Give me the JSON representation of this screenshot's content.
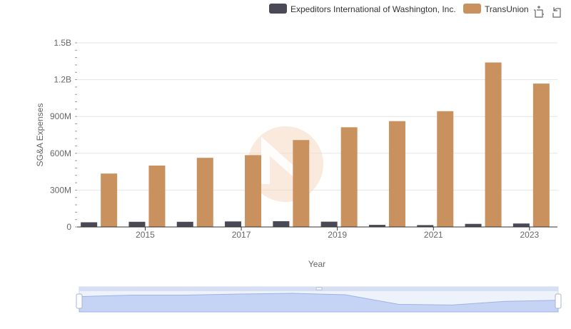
{
  "chart_data": {
    "type": "bar",
    "xlabel": "Year",
    "ylabel": "SG&A Expenses",
    "categories": [
      "2014",
      "2015",
      "2016",
      "2017",
      "2018",
      "2019",
      "2020",
      "2021",
      "2022",
      "2023"
    ],
    "x_tick_labels": [
      "2015",
      "2017",
      "2019",
      "2021",
      "2023"
    ],
    "y_tick_labels": [
      "0",
      "300M",
      "600M",
      "900M",
      "1.2B",
      "1.5B"
    ],
    "y_tick_values": [
      0,
      300000000,
      600000000,
      900000000,
      1200000000,
      1500000000
    ],
    "ylim": [
      0,
      1500000000
    ],
    "grid": true,
    "legend_position": "top-right",
    "series": [
      {
        "name": "Expeditors International of Washington, Inc.",
        "color": "#4a4a56",
        "values": [
          38000000,
          42000000,
          42000000,
          45000000,
          47000000,
          43000000,
          17000000,
          15000000,
          25000000,
          28000000
        ]
      },
      {
        "name": "TransUnion",
        "color": "#c9915d",
        "values": [
          435000000,
          500000000,
          563000000,
          585000000,
          708000000,
          812000000,
          862000000,
          943000000,
          1340000000,
          1168000000
        ]
      }
    ]
  },
  "toolbar": {
    "icons": [
      "zoom-icon",
      "reset-icon"
    ]
  },
  "watermark": {
    "color": "#f5d9c1"
  }
}
